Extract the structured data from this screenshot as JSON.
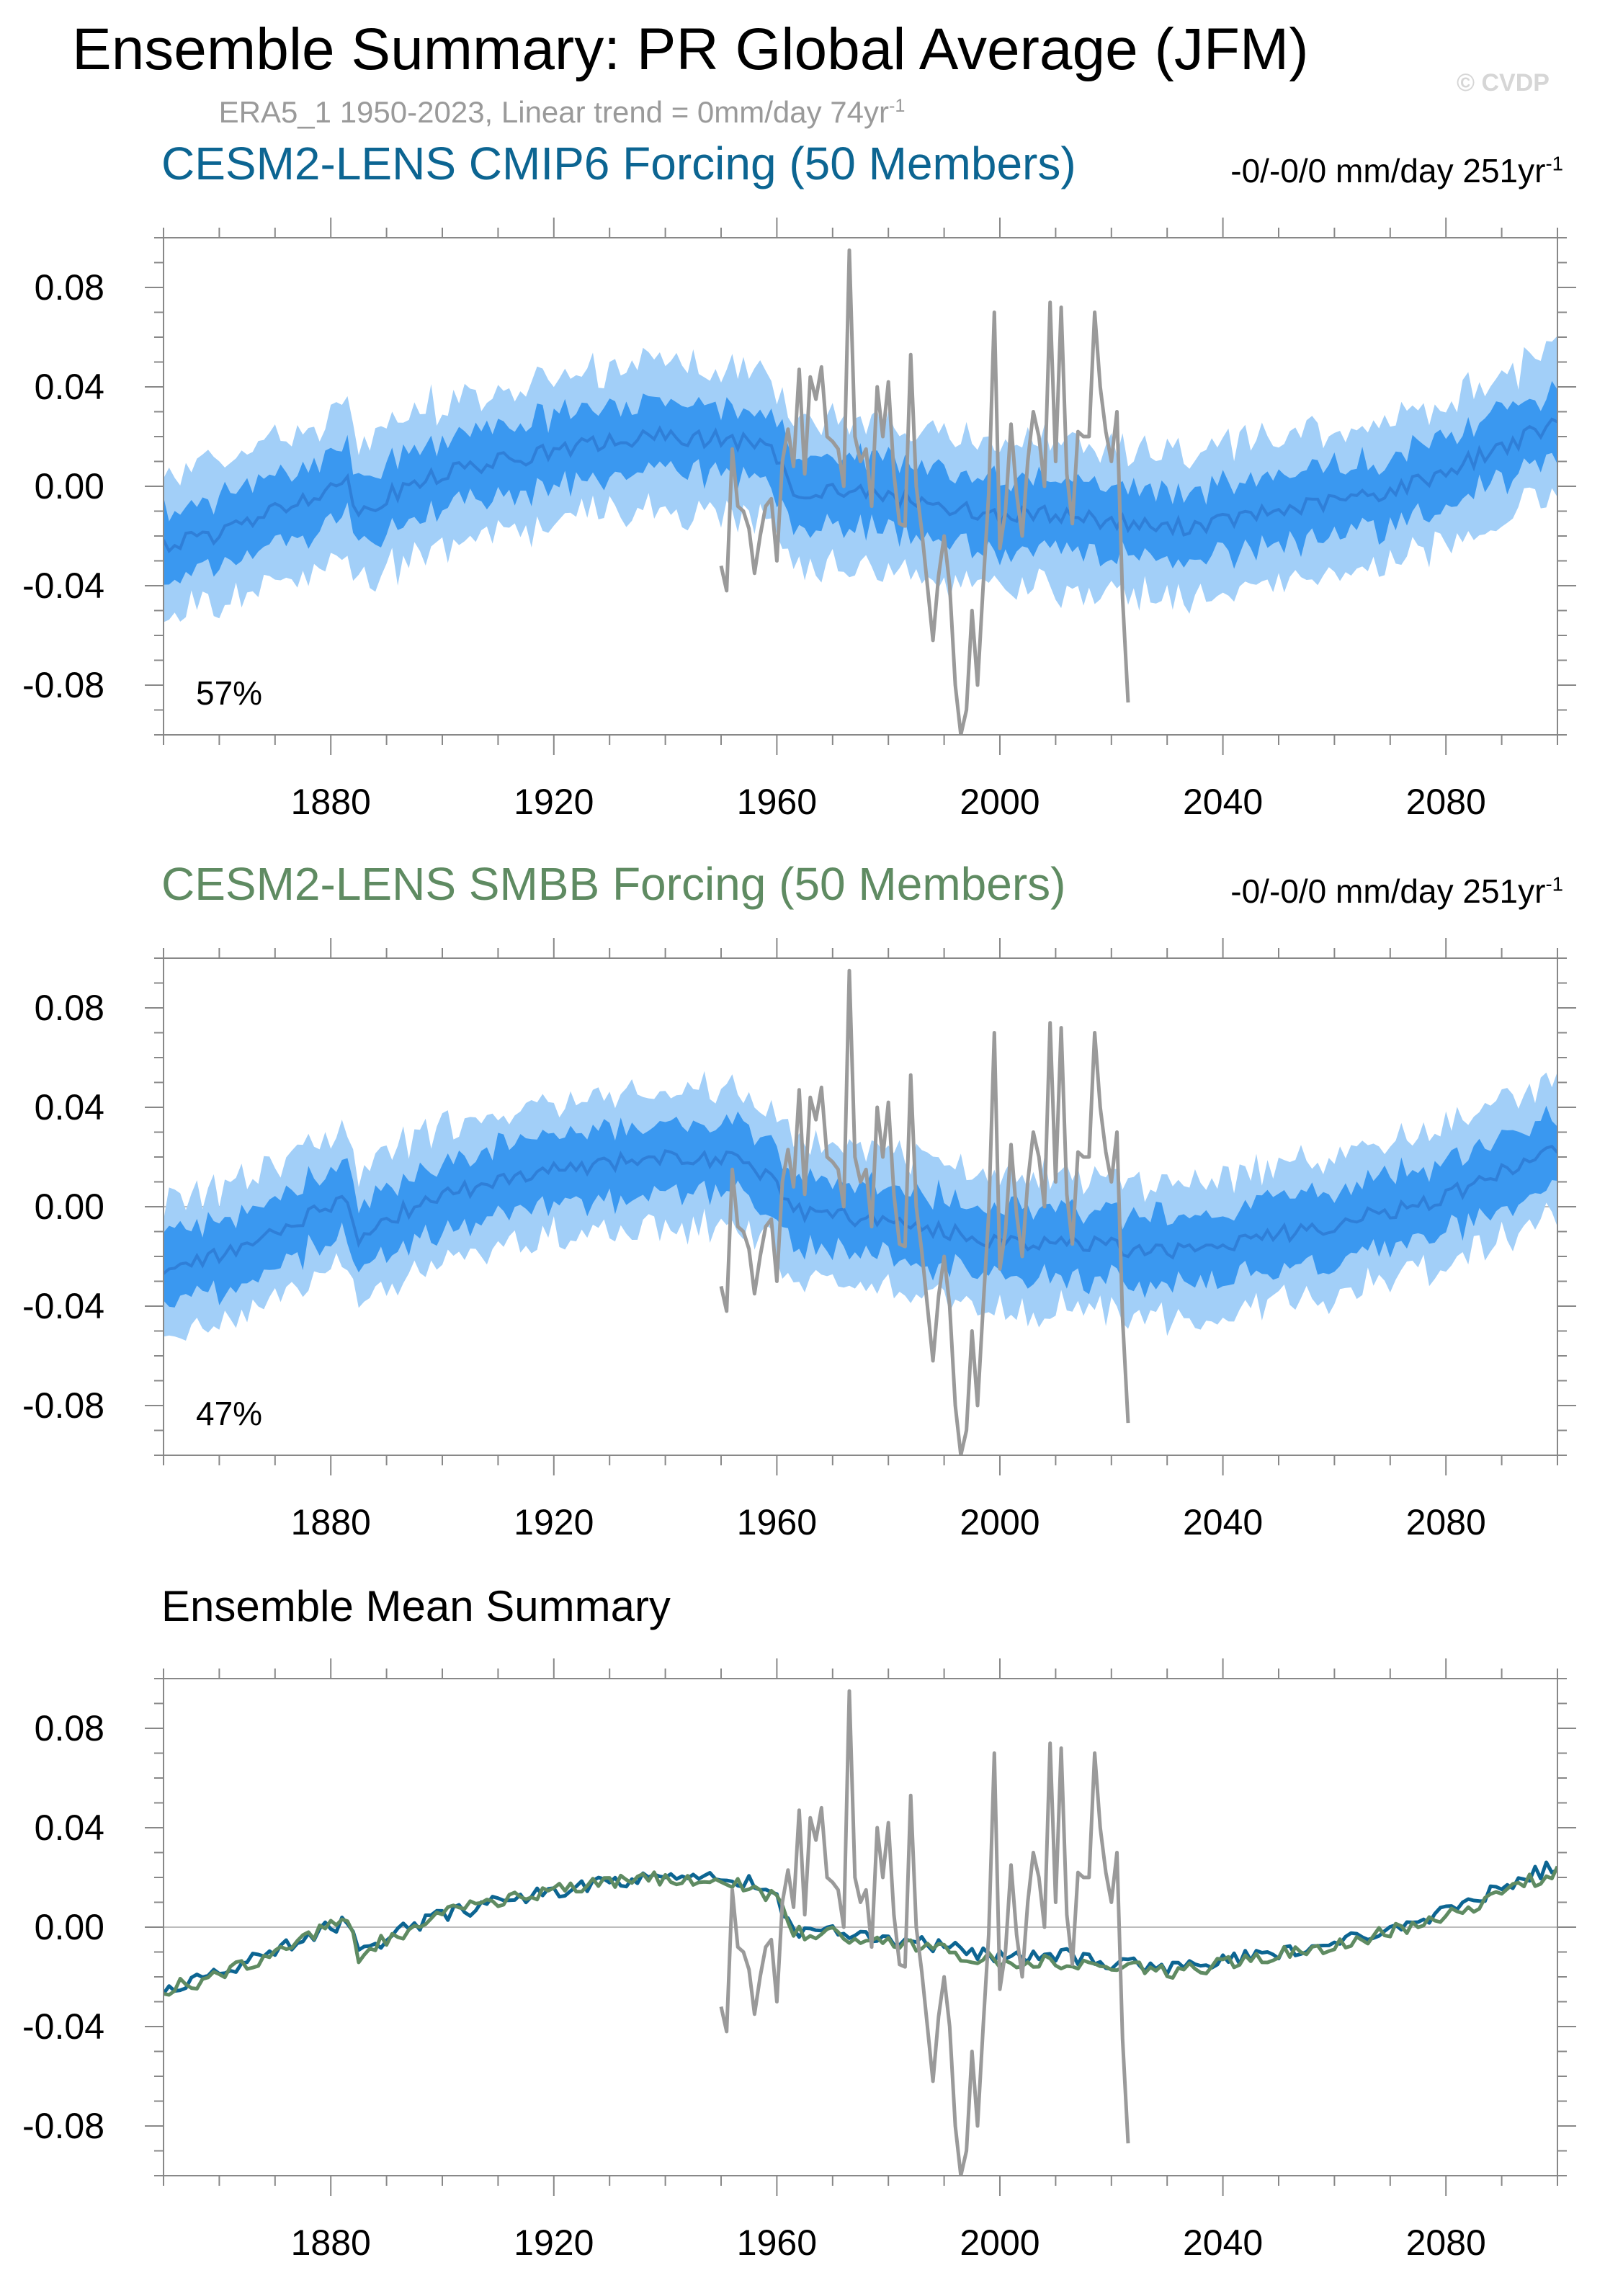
{
  "header": {
    "title": "Ensemble Summary: PR Global Average (JFM)",
    "watermark": "© CVDP",
    "obs_subtitle": {
      "text": "ERA5_1 1950-2023, Linear trend = 0mm/day 74yr",
      "sup": "-1"
    }
  },
  "colors": {
    "cmip6": "#0c6592",
    "smbb": "#5f8b62",
    "obs": "#9a9a9a",
    "band_outer": "#a2cff8",
    "band_inner": "#3a98f0",
    "ens_mean": "#2f7fd8",
    "axis": "#888888"
  },
  "panels": [
    {
      "title": "CESM2-LENS CMIP6 Forcing (50 Members)",
      "trend": {
        "text": "-0/-0/0 mm/day 251yr",
        "sup": "-1"
      },
      "pct": "57%"
    },
    {
      "title": "CESM2-LENS SMBB Forcing (50 Members)",
      "trend": {
        "text": "-0/-0/0 mm/day 251yr",
        "sup": "-1"
      },
      "pct": "47%"
    },
    {
      "title": "Ensemble Mean Summary"
    }
  ],
  "chart_data": [
    {
      "type": "area",
      "title": "CESM2-LENS CMIP6 Forcing (50 Members)",
      "xlim": [
        1850,
        2100
      ],
      "ylim": [
        -0.1,
        0.1
      ],
      "xticks": [
        "1880",
        "1920",
        "1960",
        "2000",
        "2040",
        "2080"
      ],
      "yticks": [
        "0.08",
        "0.04",
        "0.00",
        "-0.04",
        "-0.08"
      ],
      "ens_mean": {
        "x": [
          1850,
          1860,
          1870,
          1880,
          1883,
          1885,
          1890,
          1900,
          1910,
          1920,
          1930,
          1940,
          1950,
          1955,
          1960,
          1963,
          1970,
          1980,
          1990,
          2000,
          2010,
          2020,
          2030,
          2040,
          2050,
          2060,
          2070,
          2080,
          2090,
          2100
        ],
        "y": [
          -0.024,
          -0.019,
          -0.01,
          0.0,
          0.002,
          -0.011,
          -0.004,
          0.005,
          0.01,
          0.014,
          0.018,
          0.02,
          0.019,
          0.018,
          0.012,
          -0.002,
          -0.001,
          -0.004,
          -0.008,
          -0.012,
          -0.011,
          -0.014,
          -0.017,
          -0.014,
          -0.01,
          -0.006,
          -0.002,
          0.006,
          0.016,
          0.025
        ]
      },
      "inner_halfwidth": 0.014,
      "outer_halfwidth": 0.029,
      "obs": {
        "name": "ERA5_1",
        "x": [
          1950,
          1951,
          1952,
          1953,
          1954,
          1955,
          1956,
          1957,
          1958,
          1959,
          1960,
          1961,
          1962,
          1963,
          1964,
          1965,
          1966,
          1967,
          1968,
          1969,
          1970,
          1971,
          1972,
          1973,
          1974,
          1975,
          1976,
          1977,
          1978,
          1979,
          1980,
          1981,
          1982,
          1983,
          1984,
          1985,
          1986,
          1987,
          1988,
          1989,
          1990,
          1991,
          1992,
          1993,
          1994,
          1995,
          1996,
          1997,
          1998,
          1999,
          2000,
          2001,
          2002,
          2003,
          2004,
          2005,
          2006,
          2007,
          2008,
          2009,
          2010,
          2011,
          2012,
          2013,
          2014,
          2015,
          2016,
          2017,
          2018,
          2019,
          2020,
          2021,
          2022,
          2023
        ],
        "y": [
          -0.032,
          -0.042,
          0.015,
          -0.008,
          -0.01,
          -0.017,
          -0.035,
          -0.02,
          -0.008,
          -0.005,
          -0.03,
          0.01,
          0.023,
          0.008,
          0.047,
          0.005,
          0.044,
          0.035,
          0.048,
          0.02,
          0.018,
          0.015,
          0.0,
          0.095,
          0.02,
          0.01,
          0.015,
          -0.008,
          0.04,
          0.02,
          0.042,
          0.005,
          -0.015,
          -0.016,
          0.053,
          0.0,
          -0.018,
          -0.04,
          -0.062,
          -0.036,
          -0.02,
          -0.04,
          -0.08,
          -0.1,
          -0.09,
          -0.05,
          -0.08,
          -0.04,
          -0.003,
          0.07,
          -0.025,
          -0.01,
          0.025,
          -0.003,
          -0.02,
          0.01,
          0.03,
          0.02,
          0.0,
          0.074,
          0.01,
          0.072,
          0.005,
          -0.015,
          0.022,
          0.02,
          0.02,
          0.07,
          0.04,
          0.022,
          0.01,
          0.03,
          -0.045,
          -0.087
        ]
      }
    },
    {
      "type": "area",
      "title": "CESM2-LENS SMBB Forcing (50 Members)",
      "xlim": [
        1850,
        2100
      ],
      "ylim": [
        -0.1,
        0.1
      ],
      "xticks": [
        "1880",
        "1920",
        "1960",
        "2000",
        "2040",
        "2080"
      ],
      "yticks": [
        "0.08",
        "0.04",
        "0.00",
        "-0.04",
        "-0.08"
      ],
      "ens_mean": {
        "x": [
          1850,
          1860,
          1870,
          1880,
          1883,
          1885,
          1890,
          1900,
          1910,
          1920,
          1930,
          1940,
          1950,
          1955,
          1960,
          1963,
          1970,
          1980,
          1990,
          2000,
          2010,
          2020,
          2030,
          2040,
          2050,
          2060,
          2070,
          2080,
          2090,
          2100
        ],
        "y": [
          -0.025,
          -0.02,
          -0.01,
          0.001,
          0.002,
          -0.012,
          -0.005,
          0.005,
          0.01,
          0.015,
          0.018,
          0.02,
          0.019,
          0.017,
          0.011,
          -0.002,
          -0.003,
          -0.006,
          -0.01,
          -0.014,
          -0.014,
          -0.016,
          -0.018,
          -0.015,
          -0.011,
          -0.007,
          -0.002,
          0.004,
          0.014,
          0.023
        ]
      },
      "inner_halfwidth": 0.014,
      "outer_halfwidth": 0.027,
      "obs": {
        "name": "ERA5_1",
        "x": [
          1950,
          1951,
          1952,
          1953,
          1954,
          1955,
          1956,
          1957,
          1958,
          1959,
          1960,
          1961,
          1962,
          1963,
          1964,
          1965,
          1966,
          1967,
          1968,
          1969,
          1970,
          1971,
          1972,
          1973,
          1974,
          1975,
          1976,
          1977,
          1978,
          1979,
          1980,
          1981,
          1982,
          1983,
          1984,
          1985,
          1986,
          1987,
          1988,
          1989,
          1990,
          1991,
          1992,
          1993,
          1994,
          1995,
          1996,
          1997,
          1998,
          1999,
          2000,
          2001,
          2002,
          2003,
          2004,
          2005,
          2006,
          2007,
          2008,
          2009,
          2010,
          2011,
          2012,
          2013,
          2014,
          2015,
          2016,
          2017,
          2018,
          2019,
          2020,
          2021,
          2022,
          2023
        ],
        "y": [
          -0.032,
          -0.042,
          0.015,
          -0.008,
          -0.01,
          -0.017,
          -0.035,
          -0.02,
          -0.008,
          -0.005,
          -0.03,
          0.01,
          0.023,
          0.008,
          0.047,
          0.005,
          0.044,
          0.035,
          0.048,
          0.02,
          0.018,
          0.015,
          0.0,
          0.095,
          0.02,
          0.01,
          0.015,
          -0.008,
          0.04,
          0.02,
          0.042,
          0.005,
          -0.015,
          -0.016,
          0.053,
          0.0,
          -0.018,
          -0.04,
          -0.062,
          -0.036,
          -0.02,
          -0.04,
          -0.08,
          -0.1,
          -0.09,
          -0.05,
          -0.08,
          -0.04,
          -0.003,
          0.07,
          -0.025,
          -0.01,
          0.025,
          -0.003,
          -0.02,
          0.01,
          0.03,
          0.02,
          0.0,
          0.074,
          0.01,
          0.072,
          0.005,
          -0.015,
          0.022,
          0.02,
          0.02,
          0.07,
          0.04,
          0.022,
          0.01,
          0.03,
          -0.045,
          -0.087
        ]
      }
    },
    {
      "type": "line",
      "title": "Ensemble Mean Summary",
      "xlim": [
        1850,
        2100
      ],
      "ylim": [
        -0.1,
        0.1
      ],
      "xticks": [
        "1880",
        "1920",
        "1960",
        "2000",
        "2040",
        "2080"
      ],
      "yticks": [
        "0.08",
        "0.04",
        "0.00",
        "-0.04",
        "-0.08"
      ],
      "series": [
        {
          "ref": "cmip6",
          "x": [
            1850,
            1860,
            1870,
            1880,
            1883,
            1885,
            1890,
            1900,
            1910,
            1920,
            1930,
            1940,
            1950,
            1955,
            1960,
            1963,
            1970,
            1980,
            1990,
            2000,
            2010,
            2020,
            2030,
            2040,
            2050,
            2060,
            2070,
            2080,
            2090,
            2100
          ],
          "y": [
            -0.024,
            -0.019,
            -0.01,
            0.0,
            0.002,
            -0.011,
            -0.004,
            0.005,
            0.01,
            0.014,
            0.018,
            0.02,
            0.019,
            0.018,
            0.012,
            -0.002,
            -0.001,
            -0.004,
            -0.008,
            -0.012,
            -0.011,
            -0.014,
            -0.017,
            -0.014,
            -0.01,
            -0.006,
            -0.002,
            0.006,
            0.016,
            0.025
          ]
        },
        {
          "ref": "smbb",
          "x": [
            1850,
            1860,
            1870,
            1880,
            1883,
            1885,
            1890,
            1900,
            1910,
            1920,
            1930,
            1940,
            1950,
            1955,
            1960,
            1963,
            1970,
            1980,
            1990,
            2000,
            2010,
            2020,
            2030,
            2040,
            2050,
            2060,
            2070,
            2080,
            2090,
            2100
          ],
          "y": [
            -0.025,
            -0.02,
            -0.01,
            0.001,
            0.002,
            -0.012,
            -0.005,
            0.005,
            0.01,
            0.015,
            0.018,
            0.02,
            0.019,
            0.017,
            0.011,
            -0.002,
            -0.003,
            -0.006,
            -0.01,
            -0.014,
            -0.014,
            -0.016,
            -0.018,
            -0.015,
            -0.011,
            -0.007,
            -0.002,
            0.004,
            0.014,
            0.023
          ]
        },
        {
          "ref": "obs",
          "x": [
            1950,
            1951,
            1952,
            1953,
            1954,
            1955,
            1956,
            1957,
            1958,
            1959,
            1960,
            1961,
            1962,
            1963,
            1964,
            1965,
            1966,
            1967,
            1968,
            1969,
            1970,
            1971,
            1972,
            1973,
            1974,
            1975,
            1976,
            1977,
            1978,
            1979,
            1980,
            1981,
            1982,
            1983,
            1984,
            1985,
            1986,
            1987,
            1988,
            1989,
            1990,
            1991,
            1992,
            1993,
            1994,
            1995,
            1996,
            1997,
            1998,
            1999,
            2000,
            2001,
            2002,
            2003,
            2004,
            2005,
            2006,
            2007,
            2008,
            2009,
            2010,
            2011,
            2012,
            2013,
            2014,
            2015,
            2016,
            2017,
            2018,
            2019,
            2020,
            2021,
            2022,
            2023
          ],
          "y": [
            -0.032,
            -0.042,
            0.015,
            -0.008,
            -0.01,
            -0.017,
            -0.035,
            -0.02,
            -0.008,
            -0.005,
            -0.03,
            0.01,
            0.023,
            0.008,
            0.047,
            0.005,
            0.044,
            0.035,
            0.048,
            0.02,
            0.018,
            0.015,
            0.0,
            0.095,
            0.02,
            0.01,
            0.015,
            -0.008,
            0.04,
            0.02,
            0.042,
            0.005,
            -0.015,
            -0.016,
            0.053,
            0.0,
            -0.018,
            -0.04,
            -0.062,
            -0.036,
            -0.02,
            -0.04,
            -0.08,
            -0.1,
            -0.09,
            -0.05,
            -0.08,
            -0.04,
            -0.003,
            0.07,
            -0.025,
            -0.01,
            0.025,
            -0.003,
            -0.02,
            0.01,
            0.03,
            0.02,
            0.0,
            0.074,
            0.01,
            0.072,
            0.005,
            -0.015,
            0.022,
            0.02,
            0.02,
            0.07,
            0.04,
            0.022,
            0.01,
            0.03,
            -0.045,
            -0.087
          ]
        }
      ]
    }
  ]
}
